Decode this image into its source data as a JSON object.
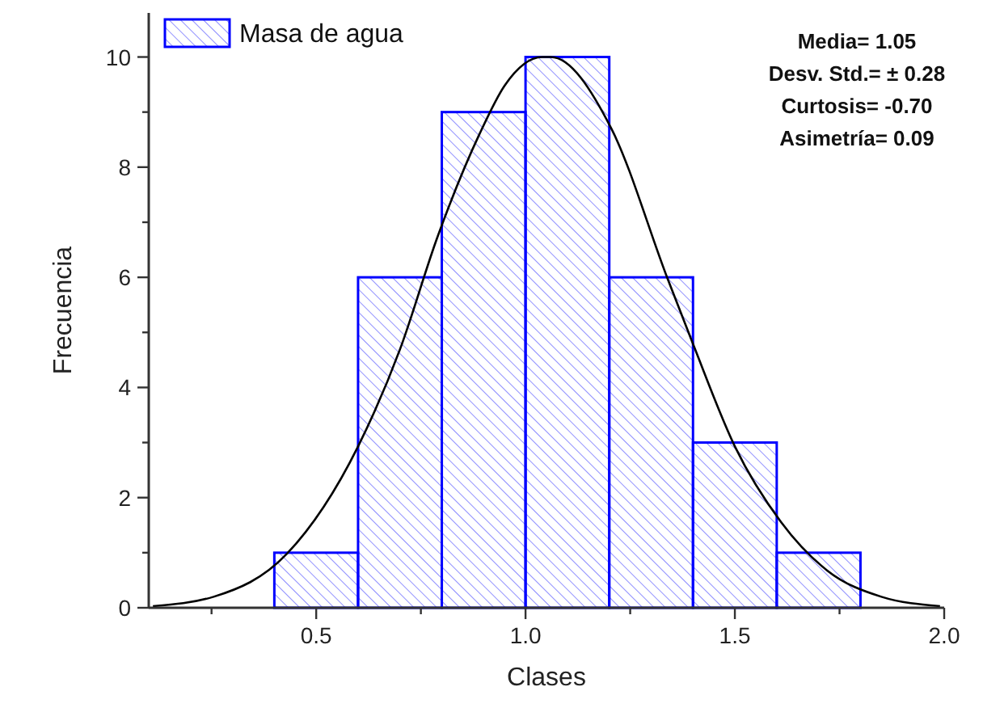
{
  "chart_data": {
    "type": "histogram",
    "xlabel": "Clases",
    "ylabel": "Frecuencia",
    "bins": [
      0.4,
      0.6,
      0.8,
      1.0,
      1.2,
      1.4,
      1.6,
      1.8
    ],
    "series": [
      {
        "name": "Masa de agua",
        "color": "#0000ff",
        "values": [
          1,
          6,
          9,
          10,
          6,
          3,
          1
        ]
      },
      {
        "type": "line",
        "color": "#000000",
        "x": [
          0.11,
          0.255,
          0.43,
          0.6,
          0.7,
          0.79,
          0.89,
          0.95,
          1.04,
          1.06,
          1.205,
          1.34,
          1.4,
          1.5,
          1.61,
          1.72,
          1.85,
          1.99
        ],
        "values": [
          0.03,
          0.2,
          0.98,
          2.93,
          4.69,
          6.74,
          8.6,
          9.48,
          10.0,
          10.0,
          8.7,
          5.96,
          4.79,
          2.93,
          1.56,
          0.68,
          0.2,
          0.03
        ]
      }
    ],
    "xlim": [
      0.1,
      2.0
    ],
    "ylim": [
      0,
      10.8
    ],
    "xticks": [
      {
        "value": 0.25,
        "label": null
      },
      {
        "value": 0.5,
        "label": "0.5"
      },
      {
        "value": 0.75,
        "label": null
      },
      {
        "value": 1.0,
        "label": "1.0"
      },
      {
        "value": 1.25,
        "label": null
      },
      {
        "value": 1.5,
        "label": "1.5"
      },
      {
        "value": 1.75,
        "label": null
      },
      {
        "value": 2.0,
        "label": "2.0"
      }
    ],
    "yticks": [
      0,
      {
        "value": 1,
        "label": null
      },
      2,
      {
        "value": 3,
        "label": null
      },
      4,
      {
        "value": 5,
        "label": null
      },
      6,
      {
        "value": 7,
        "label": null
      },
      8,
      {
        "value": 9,
        "label": null
      },
      10
    ],
    "legend": "top left",
    "grid": false,
    "annotations": [
      "Media= 1.05",
      "Desv. Std.= ± 0.28",
      "Curtosis= -0.70",
      "Asimetría= 0.09"
    ]
  }
}
